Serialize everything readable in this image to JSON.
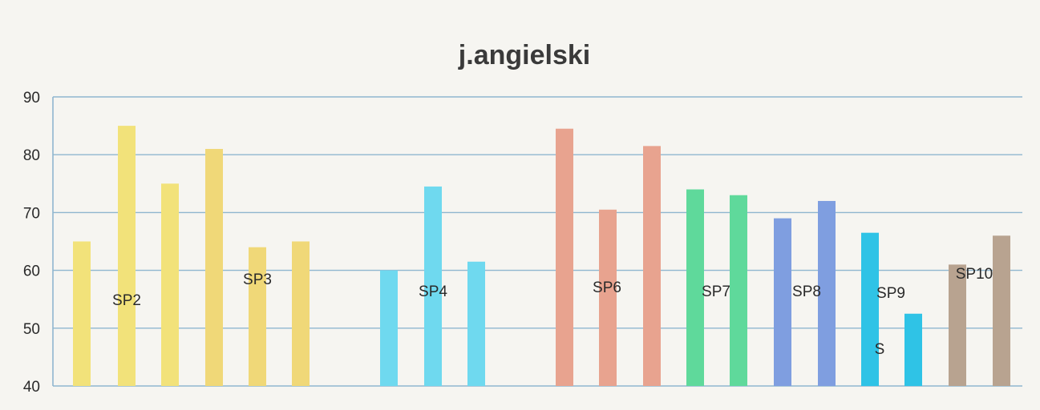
{
  "chart_data": {
    "type": "bar",
    "title": "j.angielski",
    "xlabel": "",
    "ylabel": "",
    "ylim": [
      40,
      90
    ],
    "yticks": [
      40,
      50,
      60,
      70,
      80,
      90
    ],
    "grid": true,
    "legend": "none",
    "bars": [
      {
        "group": "SP2",
        "value": 65,
        "color": "#f2e27a"
      },
      {
        "group": "SP2",
        "value": 85,
        "color": "#f2e27a"
      },
      {
        "group": "SP2",
        "value": 75,
        "color": "#f2e27a"
      },
      {
        "group": "SP2",
        "value": 81,
        "color": "#f0d878"
      },
      {
        "group": "SP3",
        "value": 64,
        "color": "#f0d878"
      },
      {
        "group": "SP3",
        "value": 65,
        "color": "#f0d878"
      },
      {
        "group": "SP4",
        "value": 60,
        "color": "#6fd9ef"
      },
      {
        "group": "SP4",
        "value": 74.5,
        "color": "#6fd9ef"
      },
      {
        "group": "SP4",
        "value": 61.5,
        "color": "#6fd9ef"
      },
      {
        "group": "SP6",
        "value": 84.5,
        "color": "#e8a38f"
      },
      {
        "group": "SP6",
        "value": 70.5,
        "color": "#e8a38f"
      },
      {
        "group": "SP6",
        "value": 81.5,
        "color": "#e8a38f"
      },
      {
        "group": "SP7",
        "value": 74,
        "color": "#5fd99b"
      },
      {
        "group": "SP7",
        "value": 73,
        "color": "#5fd99b"
      },
      {
        "group": "SP8",
        "value": 69,
        "color": "#7f9ee0"
      },
      {
        "group": "SP8",
        "value": 72,
        "color": "#7f9ee0"
      },
      {
        "group": "SP9",
        "value": 66.5,
        "color": "#2fc3e6"
      },
      {
        "group": "SP9",
        "value": 52.5,
        "color": "#2fc3e6"
      },
      {
        "group": "SP10",
        "value": 61,
        "color": "#b8a390"
      },
      {
        "group": "SP10",
        "value": 66,
        "color": "#b8a390"
      }
    ],
    "labels": [
      {
        "text": "SP2"
      },
      {
        "text": "SP3"
      },
      {
        "text": "SP4"
      },
      {
        "text": "SP6"
      },
      {
        "text": "SP7"
      },
      {
        "text": "SP8"
      },
      {
        "text": "SP9"
      },
      {
        "text": "S"
      },
      {
        "text": "SP10"
      }
    ]
  }
}
